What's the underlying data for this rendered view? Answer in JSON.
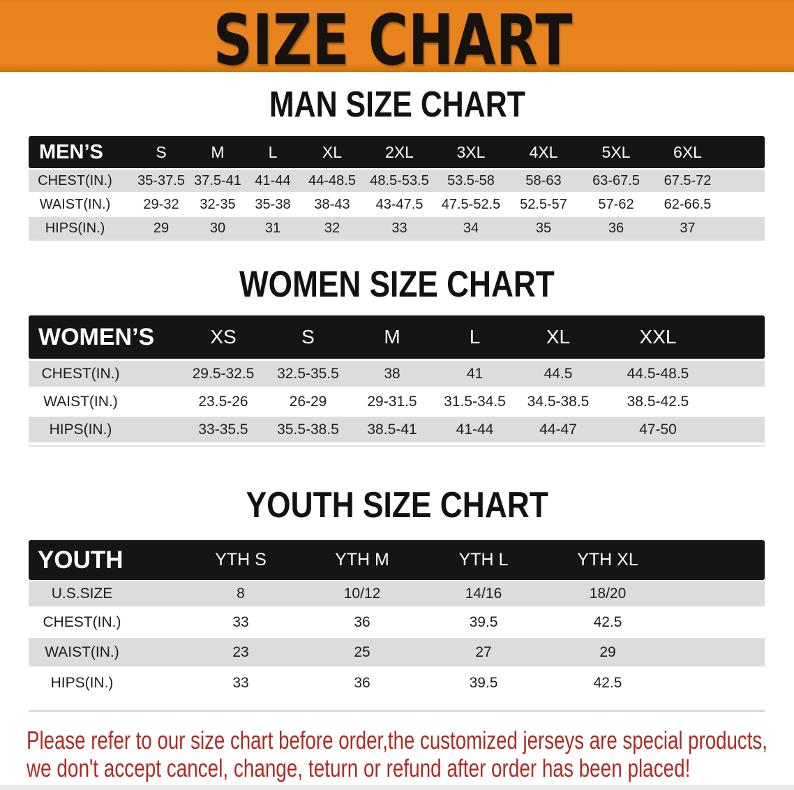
{
  "banner": {
    "title": "SIZE CHART"
  },
  "sections": {
    "men": {
      "heading": "MAN SIZE CHART",
      "table": {
        "header": [
          "MEN’S",
          "S",
          "M",
          "L",
          "XL",
          "2XL",
          "3XL",
          "4XL",
          "5XL",
          "6XL"
        ],
        "rows": [
          [
            "CHEST(IN.)",
            "35-37.5",
            "37.5-41",
            "41-44",
            "44-48.5",
            "48.5-53.5",
            "53.5-58",
            "58-63",
            "63-67.5",
            "67.5-72"
          ],
          [
            "WAIST(IN.)",
            "29-32",
            "32-35",
            "35-38",
            "38-43",
            "43-47.5",
            "47.5-52.5",
            "52.5-57",
            "57-62",
            "62-66.5"
          ],
          [
            "HIPS(IN.)",
            "29",
            "30",
            "31",
            "32",
            "33",
            "34",
            "35",
            "36",
            "37"
          ]
        ]
      }
    },
    "women": {
      "heading": "WOMEN SIZE CHART",
      "table": {
        "header": [
          "WOMEN’S",
          "XS",
          "S",
          "M",
          "L",
          "XL",
          "XXL"
        ],
        "rows": [
          [
            "CHEST(IN.)",
            "29.5-32.5",
            "32.5-35.5",
            "38",
            "41",
            "44.5",
            "44.5-48.5"
          ],
          [
            "WAIST(IN.)",
            "23.5-26",
            "26-29",
            "29-31.5",
            "31.5-34.5",
            "34.5-38.5",
            "38.5-42.5"
          ],
          [
            "HIPS(IN.)",
            "33-35.5",
            "35.5-38.5",
            "38.5-41",
            "41-44",
            "44-47",
            "47-50"
          ]
        ]
      }
    },
    "youth": {
      "heading": "YOUTH SIZE CHART",
      "table": {
        "header": [
          "YOUTH",
          "YTH S",
          "YTH M",
          "YTH L",
          "YTH XL"
        ],
        "rows": [
          [
            "U.S.SIZE",
            "8",
            "10/12",
            "14/16",
            "18/20"
          ],
          [
            "CHEST(IN.)",
            "33",
            "36",
            "39.5",
            "42.5"
          ],
          [
            "WAIST(IN.)",
            "23",
            "25",
            "27",
            "29"
          ],
          [
            "HIPS(IN.)",
            "33",
            "36",
            "39.5",
            "42.5"
          ]
        ]
      }
    }
  },
  "note": {
    "line1": "Please refer to our size chart before order,the customized jerseys are special products,",
    "line2": "we don't accept cancel, change, teturn or refund after order has been placed!"
  },
  "colors": {
    "banner_orange": "#e8831e",
    "header_black": "#161514",
    "row_gray": "#dcdcdd",
    "note_red": "#ad2a24"
  }
}
